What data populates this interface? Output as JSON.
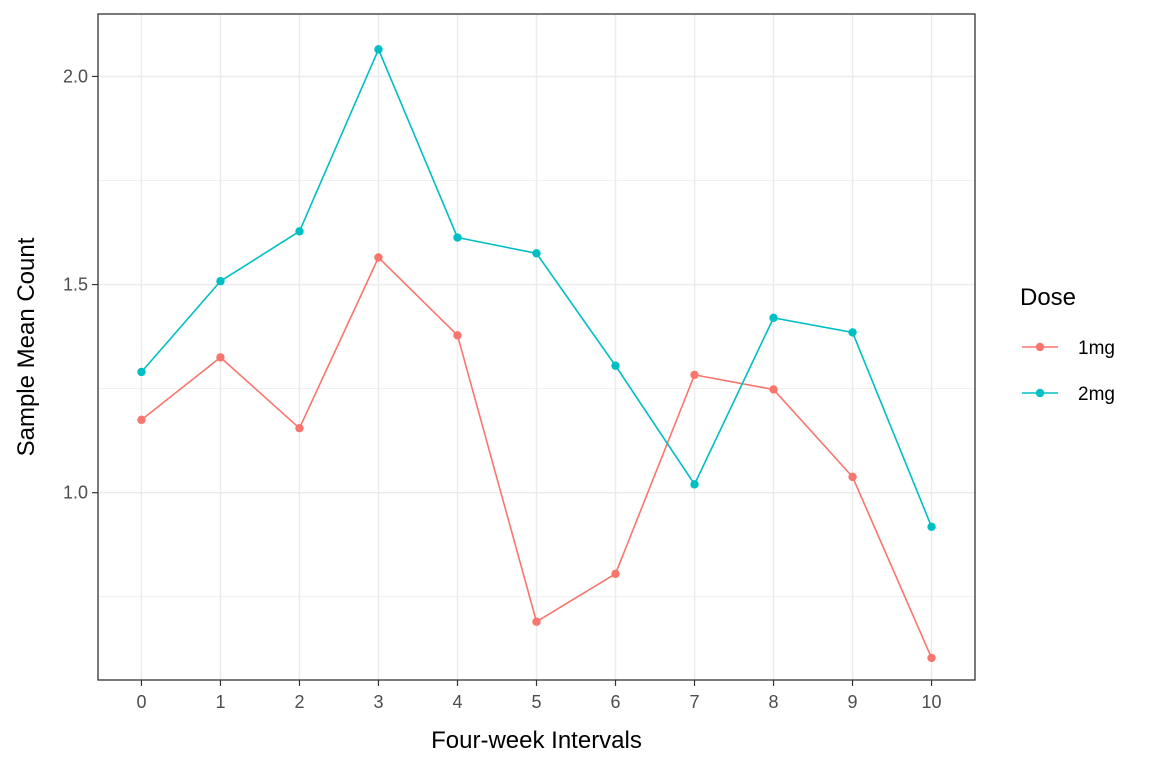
{
  "chart_data": {
    "type": "line",
    "xlabel": "Four-week Intervals",
    "ylabel": "Sample Mean Count",
    "x": [
      0,
      1,
      2,
      3,
      4,
      5,
      6,
      7,
      8,
      9,
      10
    ],
    "xticks": [
      "0",
      "1",
      "2",
      "3",
      "4",
      "5",
      "6",
      "7",
      "8",
      "9",
      "10"
    ],
    "yticks": [
      "1.0",
      "1.5",
      "2.0"
    ],
    "ytick_values": [
      1.0,
      1.5,
      2.0
    ],
    "xlim": [
      -0.55,
      10.55
    ],
    "ylim": [
      0.55,
      2.15
    ],
    "grid": true,
    "legend": {
      "title": "Dose",
      "position": "right"
    },
    "series": [
      {
        "name": "1mg",
        "color": "#F8766D",
        "values": [
          1.175,
          1.325,
          1.155,
          1.565,
          1.378,
          0.69,
          0.805,
          1.283,
          1.248,
          1.038,
          0.603
        ]
      },
      {
        "name": "2mg",
        "color": "#00BFC4",
        "values": [
          1.29,
          1.508,
          1.628,
          2.065,
          1.613,
          1.575,
          1.305,
          1.02,
          1.42,
          1.385,
          0.918
        ]
      }
    ]
  }
}
